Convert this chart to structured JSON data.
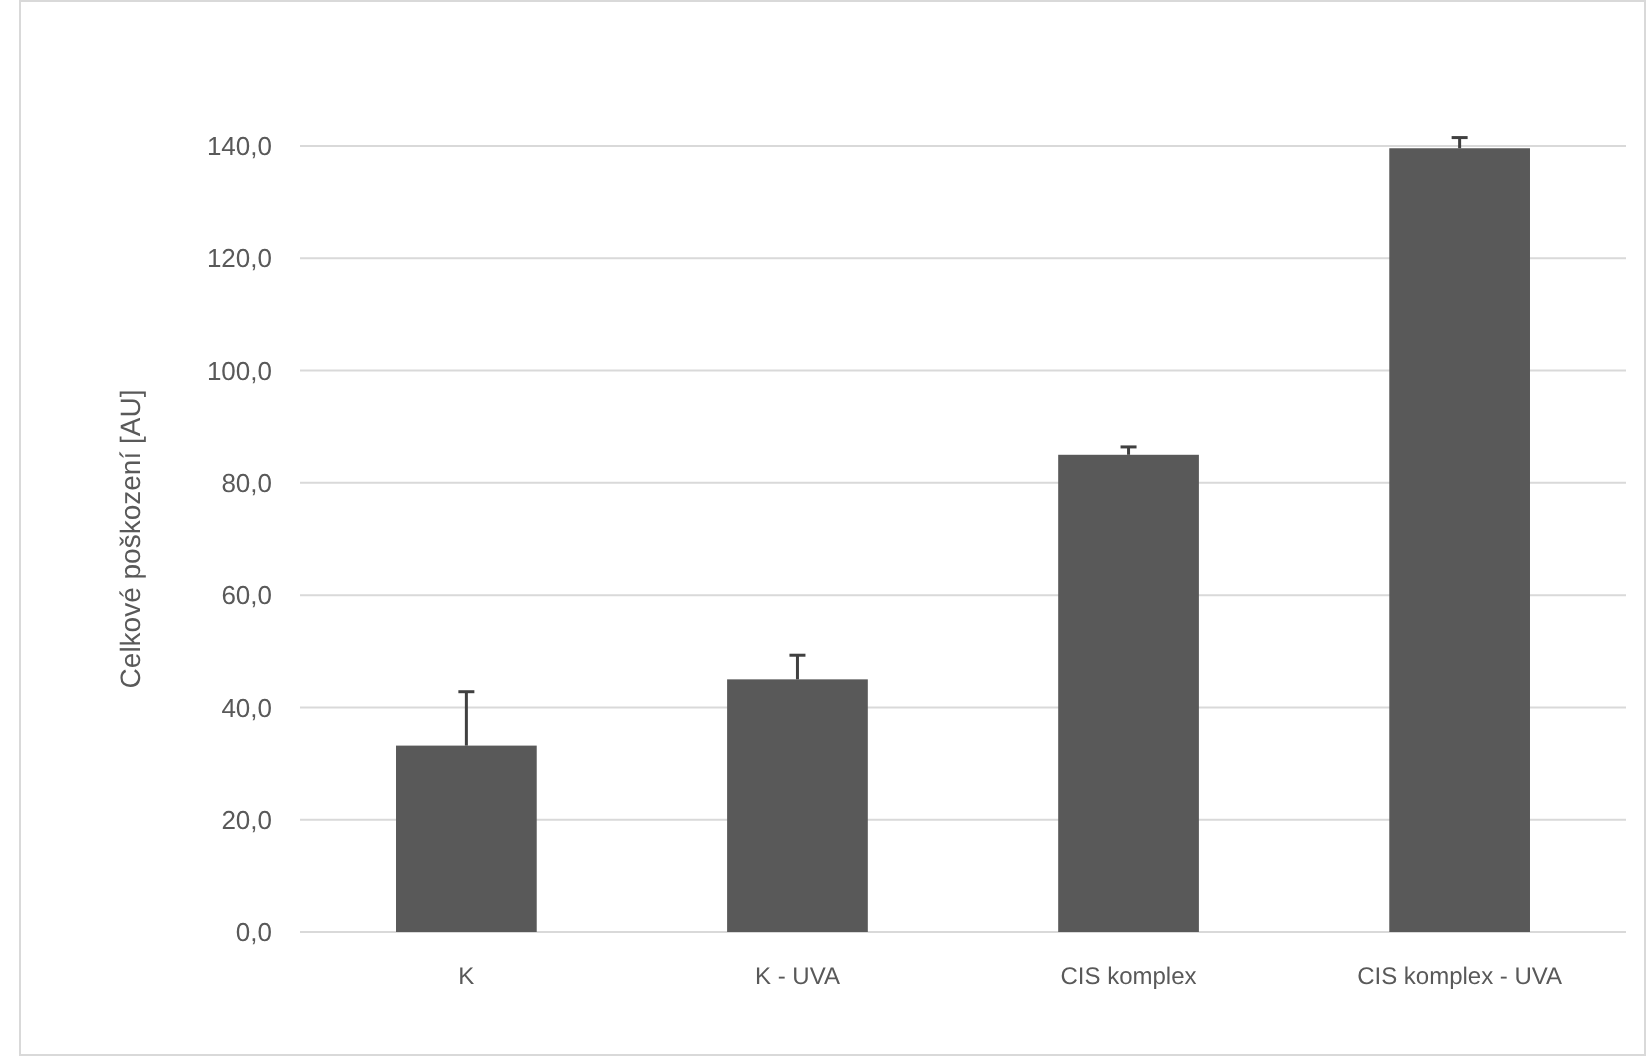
{
  "chart_data": {
    "type": "bar",
    "ylabel": "Celkové poškození [AU]",
    "categories": [
      "K",
      "K - UVA",
      "CIS komplex",
      "CIS komplex - UVA"
    ],
    "values": [
      33.2,
      45,
      85,
      139.6
    ],
    "color": "#595959",
    "errors": [
      [
        33.2,
        42.8
      ],
      [
        45,
        49.3
      ],
      [
        85,
        86.4
      ],
      [
        139.6,
        141.5
      ]
    ],
    "ylim": [
      0,
      140
    ],
    "yticks": [
      {
        "value": 0,
        "label": "0,0"
      },
      {
        "value": 20,
        "label": "20,0"
      },
      {
        "value": 40,
        "label": "40,0"
      },
      {
        "value": 60,
        "label": "60,0"
      },
      {
        "value": 80,
        "label": "80,0"
      },
      {
        "value": 100,
        "label": "100,0"
      },
      {
        "value": 120,
        "label": "120,0"
      },
      {
        "value": 140,
        "label": "140,0"
      }
    ],
    "grid": "y"
  }
}
